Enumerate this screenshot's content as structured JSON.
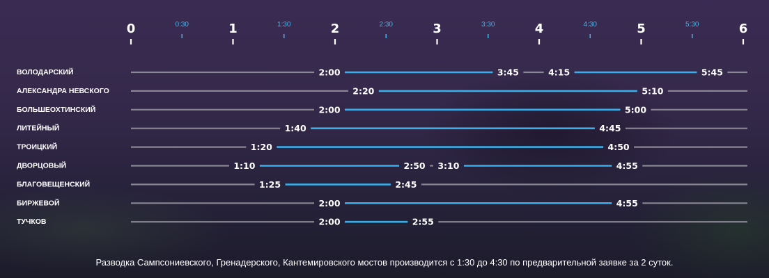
{
  "chart_data": {
    "type": "gantt",
    "x_axis": {
      "range": [
        "0:00",
        "6:00"
      ],
      "major_ticks": [
        "0",
        "1",
        "2",
        "3",
        "4",
        "5",
        "6"
      ],
      "minor_ticks": [
        "0:30",
        "1:30",
        "2:30",
        "3:30",
        "4:30",
        "5:30"
      ]
    },
    "rows": [
      {
        "label": "ВОЛОДАРСКИЙ",
        "intervals": [
          [
            "2:00",
            "3:45"
          ],
          [
            "4:15",
            "5:45"
          ]
        ]
      },
      {
        "label": "АЛЕКСАНДРА НЕВСКОГО",
        "intervals": [
          [
            "2:20",
            "5:10"
          ]
        ]
      },
      {
        "label": "БОЛЬШЕОХТИНСКИЙ",
        "intervals": [
          [
            "2:00",
            "5:00"
          ]
        ]
      },
      {
        "label": "ЛИТЕЙНЫЙ",
        "intervals": [
          [
            "1:40",
            "4:45"
          ]
        ]
      },
      {
        "label": "ТРОИЦКИЙ",
        "intervals": [
          [
            "1:20",
            "4:50"
          ]
        ]
      },
      {
        "label": "ДВОРЦОВЫЙ",
        "intervals": [
          [
            "1:10",
            "2:50"
          ],
          [
            "3:10",
            "4:55"
          ]
        ]
      },
      {
        "label": "БЛАГОВЕЩЕНСКИЙ",
        "intervals": [
          [
            "1:25",
            "2:45"
          ]
        ]
      },
      {
        "label": "БИРЖЕВОЙ",
        "intervals": [
          [
            "2:00",
            "4:55"
          ]
        ]
      },
      {
        "label": "ТУЧКОВ",
        "intervals": [
          [
            "2:00",
            "2:55"
          ]
        ]
      }
    ],
    "colors": {
      "open": "#3aaee8",
      "closed": "#8a8794",
      "minor_tick": "#4ab2ea"
    }
  },
  "footnote": "Разводка Сампсониевского, Гренадерского, Кантемировского мостов производится с 1:30 до 4:30 по предварительной заявке за 2 суток."
}
